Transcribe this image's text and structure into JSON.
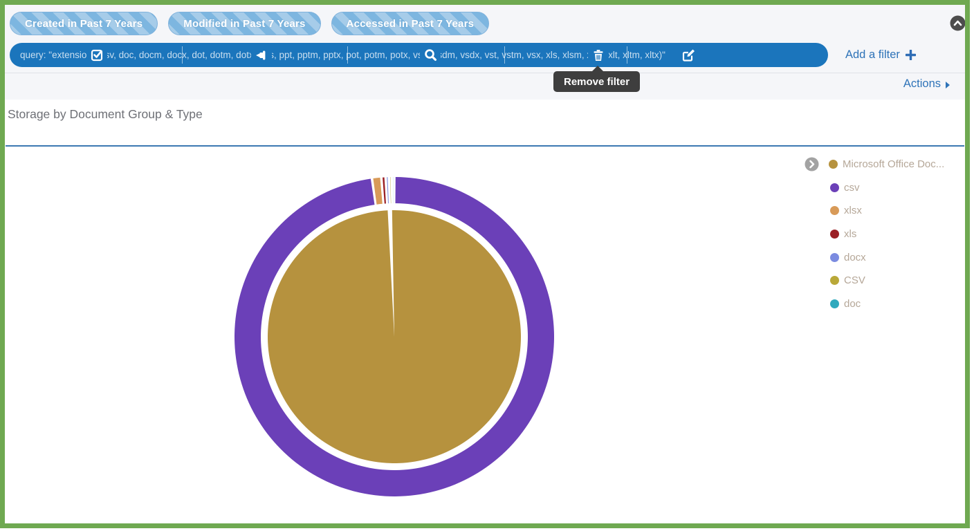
{
  "frame": {
    "border_color": "#6fa951"
  },
  "filter_bar": {
    "pills": [
      {
        "label": "Created in Past 7 Years"
      },
      {
        "label": "Modified in Past 7 Years"
      },
      {
        "label": "Accessed in Past 7 Years"
      }
    ],
    "pill_stripe_light": "#a6cce9",
    "pill_stripe_dark": "#7db6e0",
    "query": {
      "bg_color": "#1b75bc",
      "text": "query: \"extension: (csv, doc, docm, docx, dot, dotm, dotx, pps, ppt, pptm, pptx, pot, potm, potx, vsd, vsdm, vsdx, vst, vstm, vsx, xls, xlsm, xlsx, xlt, xltm, xltx)\"",
      "icons": [
        "checkbox-checked",
        "pin",
        "magnifier",
        "trash",
        "edit"
      ]
    },
    "add_filter_label": "Add a filter",
    "link_color": "#2e73b8"
  },
  "tooltip": {
    "text": "Remove filter",
    "bg_color": "#3e3e3e"
  },
  "actions_label": "Actions",
  "panel": {
    "title": "Storage by Document Group & Type"
  },
  "chart_data": {
    "type": "sunburst",
    "title": "Storage by Document Group & Type",
    "legend_position": "right",
    "inner_ring": [
      {
        "label": "Microsoft Office Doc...",
        "color": "#b6923e",
        "share_pct": 99.9
      }
    ],
    "outer_ring": [
      {
        "label": "csv",
        "color": "#6b40b8",
        "share_pct": 99.0
      },
      {
        "label": "xlsx",
        "color": "#d89a58",
        "share_pct": 0.7
      },
      {
        "label": "xls",
        "color": "#9b2025",
        "share_pct": 0.18
      },
      {
        "label": "docx",
        "color": "#7b8be0",
        "share_pct": 0.08
      },
      {
        "label": "CSV",
        "color": "#b9a838",
        "share_pct": 0.03
      },
      {
        "label": "doc",
        "color": "#2fa9bd",
        "share_pct": 0.01
      }
    ],
    "legend": [
      {
        "label": "Microsoft Office Doc...",
        "color": "#b6923e",
        "expandable": true
      },
      {
        "label": "csv",
        "color": "#6b40b8"
      },
      {
        "label": "xlsx",
        "color": "#d89a58"
      },
      {
        "label": "xls",
        "color": "#9b2025"
      },
      {
        "label": "docx",
        "color": "#7b8be0"
      },
      {
        "label": "CSV",
        "color": "#b9a838"
      },
      {
        "label": "doc",
        "color": "#2fa9bd"
      }
    ]
  }
}
